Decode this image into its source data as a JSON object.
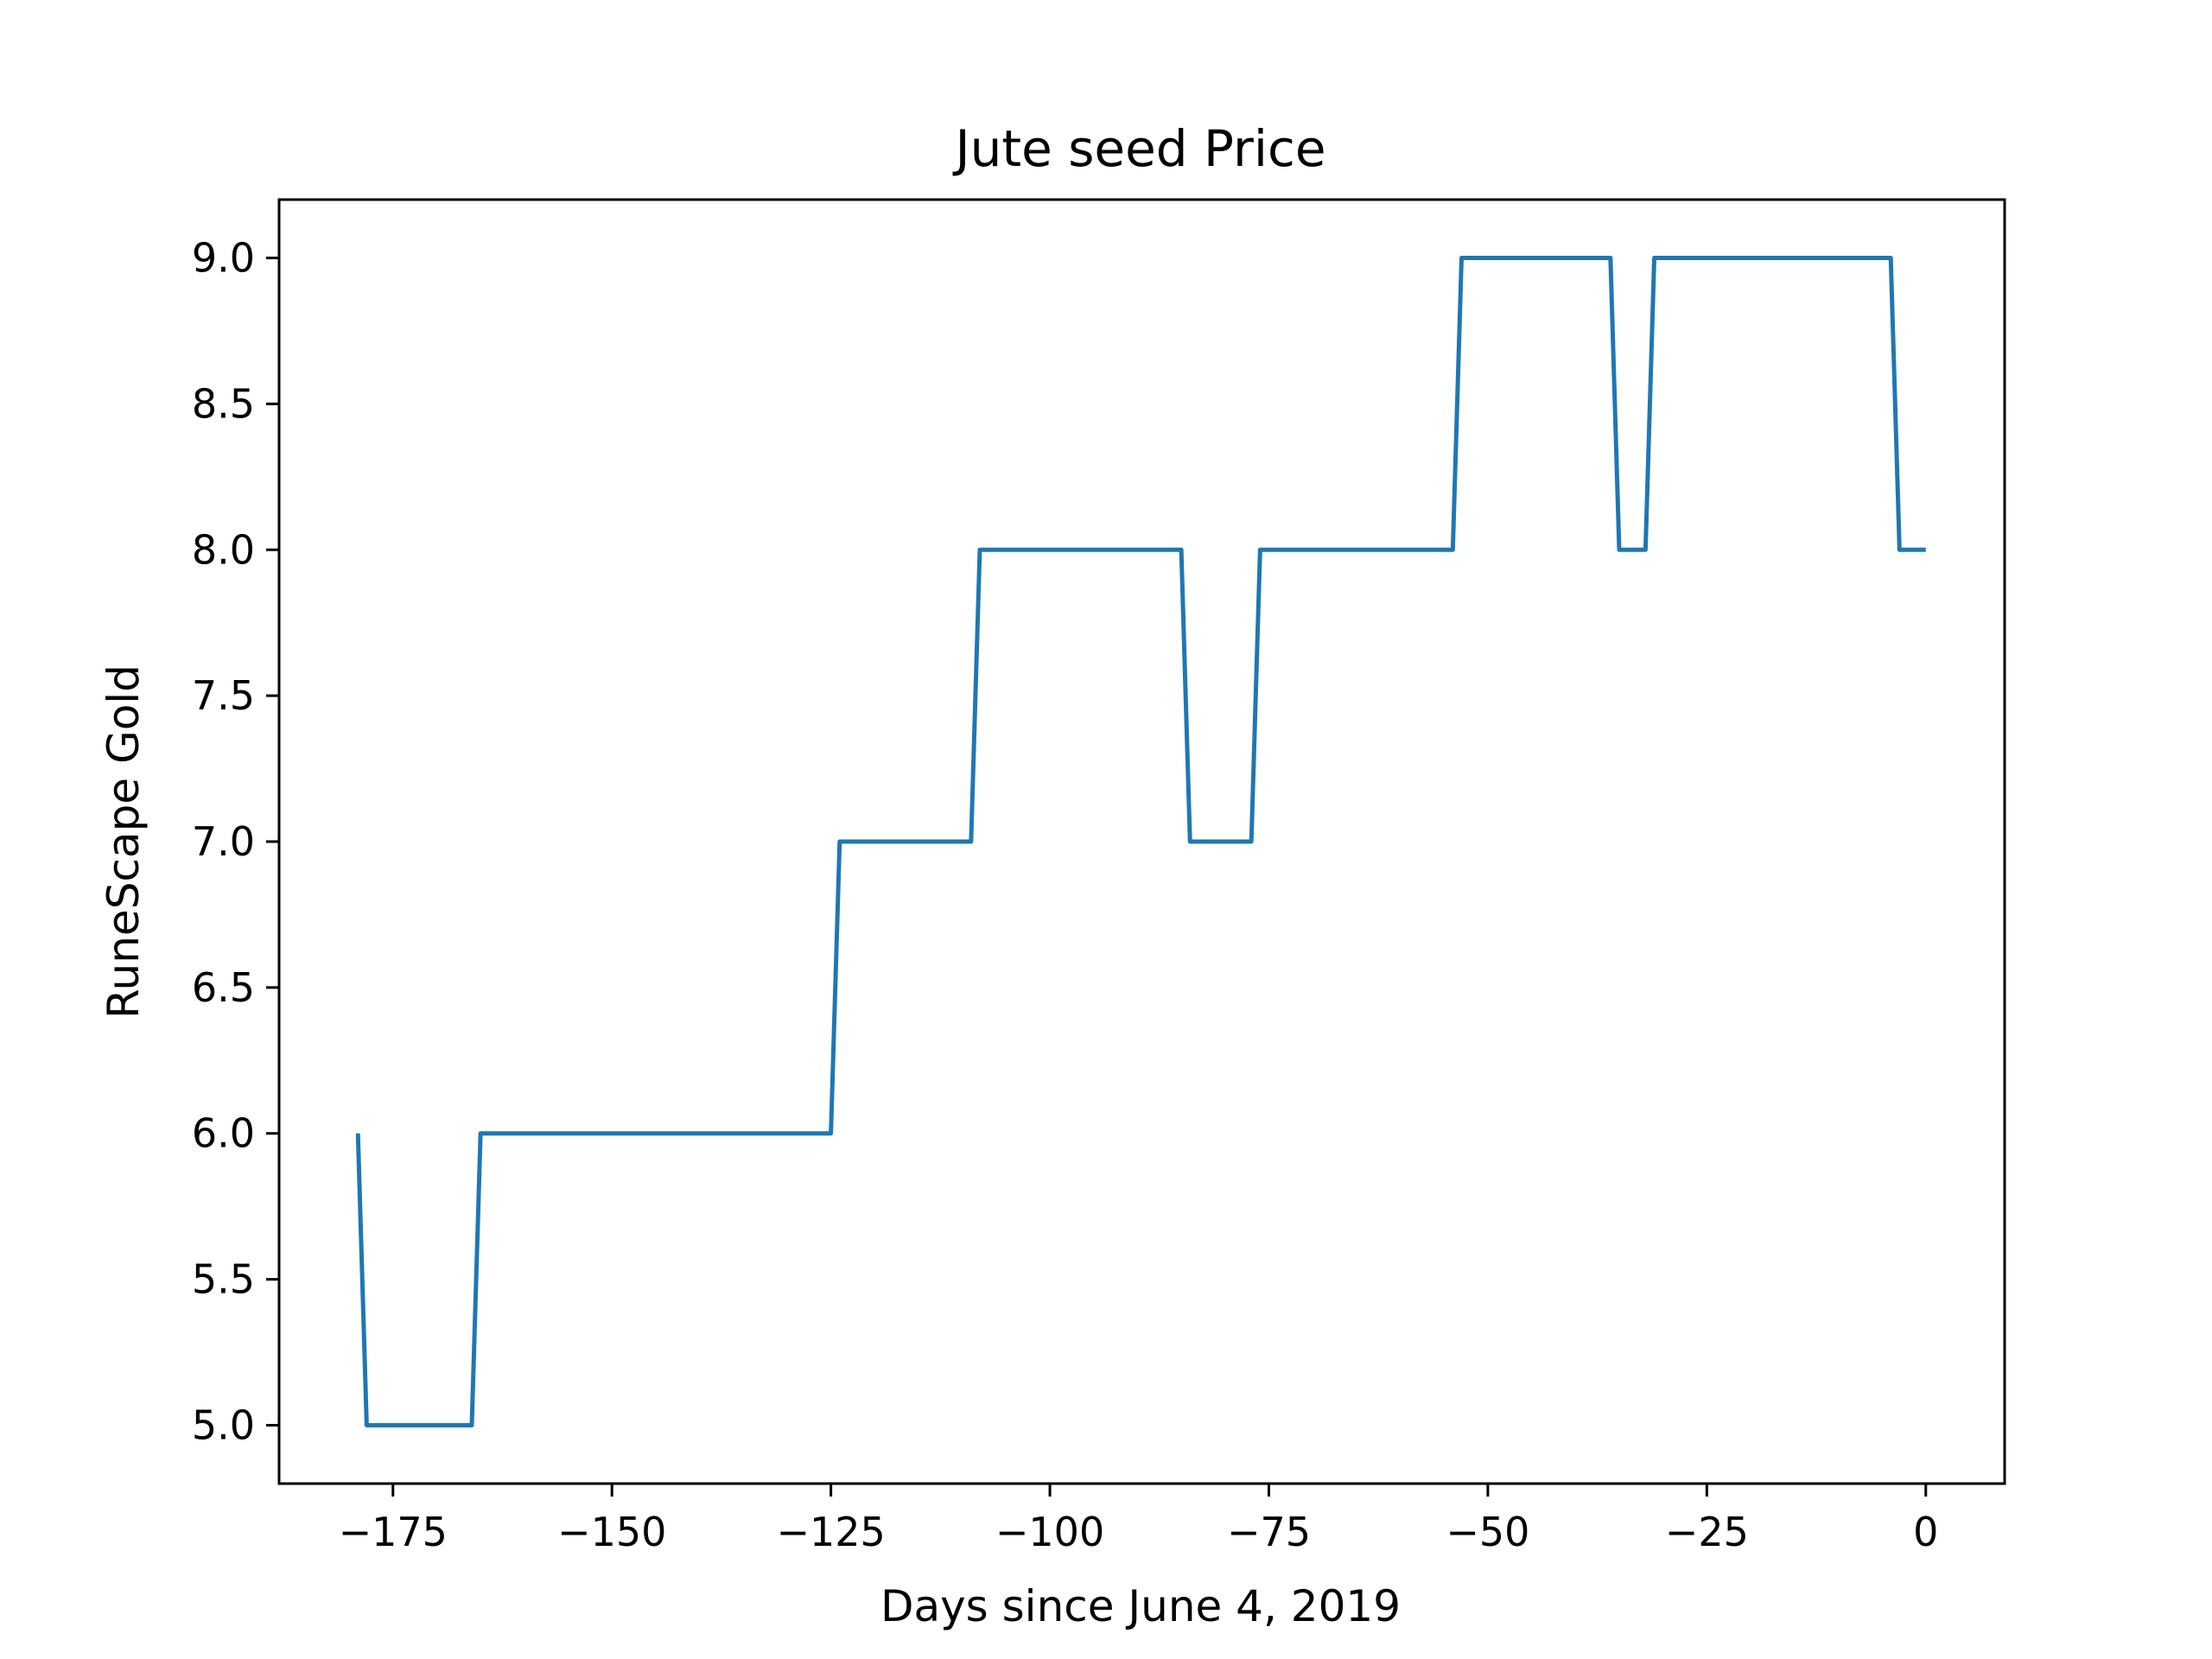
{
  "chart_data": {
    "type": "line",
    "title": "Jute seed Price",
    "xlabel": "Days since June 4, 2019",
    "ylabel": "RuneScape Gold",
    "xlim": [
      -188,
      9
    ],
    "ylim": [
      4.8,
      9.2
    ],
    "grid": false,
    "xticks": [
      -175,
      -150,
      -125,
      -100,
      -75,
      -50,
      -25,
      0
    ],
    "xtick_labels": [
      "−175",
      "−150",
      "−125",
      "−100",
      "−75",
      "−50",
      "−25",
      "0"
    ],
    "yticks": [
      5.0,
      5.5,
      6.0,
      6.5,
      7.0,
      7.5,
      8.0,
      8.5,
      9.0
    ],
    "ytick_labels": [
      "5.0",
      "5.5",
      "6.0",
      "6.5",
      "7.0",
      "7.5",
      "8.0",
      "8.5",
      "9.0"
    ],
    "series": [
      {
        "color": "#1f77b4",
        "x": [
          -179,
          -178,
          -166,
          -165,
          -125,
          -124,
          -109,
          -108,
          -85,
          -84,
          -77,
          -76,
          -54,
          -53,
          -36,
          -35,
          -32,
          -31,
          -4,
          -3,
          0
        ],
        "y": [
          6,
          5,
          5,
          6,
          6,
          7,
          7,
          8,
          8,
          7,
          7,
          8,
          8,
          9,
          9,
          8,
          8,
          9,
          9,
          8,
          8
        ]
      }
    ]
  }
}
